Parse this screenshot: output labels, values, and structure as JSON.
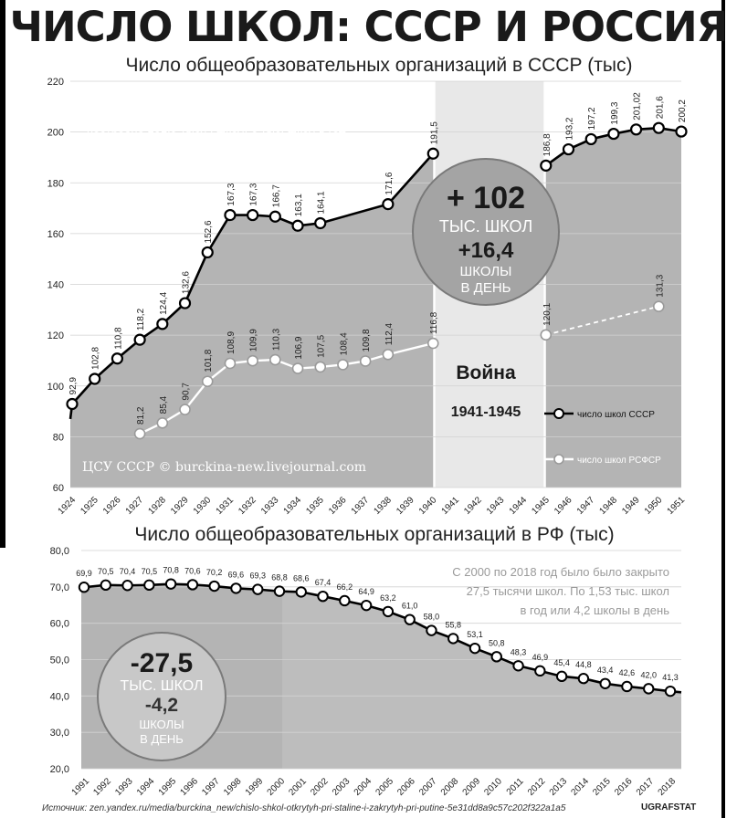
{
  "title": "ЧИСЛО ШКОЛ: СССР И РОССИЯ",
  "source": "Источник: zen.yandex.ru/media/burckina_new/chislo-shkol-otkrytyh-pri-staline-i-zakrytyh-pri-putine-5e31dd8a9c57c202f322a1a5",
  "brand": "UGRAFSTAT",
  "colors": {
    "area": "#b4b4b4",
    "war_band": "#e8e8e8",
    "line": "#000000",
    "accent_text": "#ffffff"
  },
  "chart_data": [
    {
      "type": "area",
      "title": "Число общеобразовательных организаций в СССР (тыс)",
      "ylim": [
        60,
        220
      ],
      "yticks": [
        "60",
        "80",
        "100",
        "120",
        "140",
        "160",
        "180",
        "200",
        "220"
      ],
      "categories": [
        "1924",
        "1925",
        "1926",
        "1927",
        "1928",
        "1929",
        "1930",
        "1931",
        "1932",
        "1933",
        "1934",
        "1935",
        "1936",
        "1937",
        "1938",
        "1939",
        "1940",
        "1941",
        "1942",
        "1943",
        "1944",
        "1945",
        "1946",
        "1947",
        "1948",
        "1949",
        "1950",
        "1951"
      ],
      "series": [
        {
          "name": "число школ СССР",
          "points": [
            {
              "x": "1924",
              "y": 92.9,
              "label": "92,9"
            },
            {
              "x": "1925",
              "y": 102.8,
              "label": "102,8"
            },
            {
              "x": "1926",
              "y": 110.8,
              "label": "110,8"
            },
            {
              "x": "1927",
              "y": 118.2,
              "label": "118,2"
            },
            {
              "x": "1928",
              "y": 124.4,
              "label": "124,4"
            },
            {
              "x": "1929",
              "y": 132.6,
              "label": "132,6"
            },
            {
              "x": "1930",
              "y": 152.6,
              "label": "152,6"
            },
            {
              "x": "1931",
              "y": 167.3,
              "label": "167,3"
            },
            {
              "x": "1932",
              "y": 167.3,
              "label": "167,3"
            },
            {
              "x": "1933",
              "y": 166.7,
              "label": "166,7"
            },
            {
              "x": "1934",
              "y": 163.1,
              "label": "163,1"
            },
            {
              "x": "1935",
              "y": 164.1,
              "label": "164,1"
            },
            {
              "x": "1938",
              "y": 171.6,
              "label": "171,6"
            },
            {
              "x": "1940",
              "y": 191.5,
              "label": "191,5"
            },
            {
              "x": "1945",
              "y": 186.8,
              "label": "186,8"
            },
            {
              "x": "1946",
              "y": 193.2,
              "label": "193,2"
            },
            {
              "x": "1947",
              "y": 197.2,
              "label": "197,2"
            },
            {
              "x": "1948",
              "y": 199.3,
              "label": "199,3"
            },
            {
              "x": "1949",
              "y": 201.02,
              "label": "201,02"
            },
            {
              "x": "1950",
              "y": 201.6,
              "label": "201,6"
            },
            {
              "x": "1951",
              "y": 200.2,
              "label": "200,2"
            }
          ]
        },
        {
          "name": "число школ РСФСР",
          "points": [
            {
              "x": "1927",
              "y": 81.2,
              "label": "81,2"
            },
            {
              "x": "1928",
              "y": 85.4,
              "label": "85,4"
            },
            {
              "x": "1929",
              "y": 90.7,
              "label": "90,7"
            },
            {
              "x": "1930",
              "y": 101.8,
              "label": "101,8"
            },
            {
              "x": "1931",
              "y": 108.9,
              "label": "108,9"
            },
            {
              "x": "1932",
              "y": 109.9,
              "label": "109,9"
            },
            {
              "x": "1933",
              "y": 110.3,
              "label": "110,3"
            },
            {
              "x": "1934",
              "y": 106.9,
              "label": "106,9"
            },
            {
              "x": "1935",
              "y": 107.5,
              "label": "107,5"
            },
            {
              "x": "1936",
              "y": 108.4,
              "label": "108,4"
            },
            {
              "x": "1937",
              "y": 109.8,
              "label": "109,8"
            },
            {
              "x": "1938",
              "y": 112.4,
              "label": "112,4"
            },
            {
              "x": "1940",
              "y": 116.8,
              "label": "116,8"
            },
            {
              "x": "1945",
              "y": 120.1,
              "label": "120,1"
            },
            {
              "x": "1950",
              "y": 131.3,
              "label": "131,3"
            }
          ]
        }
      ],
      "annotation": [
        "До войны в СССР с 1923 по 1940 год было",
        "построено 101,9 тысяч школ. 6 тыс. школ в год",
        "или 16,4 школы в день"
      ],
      "watermark": "ЦСУ СССР © burckina-new.livejournal.com",
      "war_label": "Война",
      "war_years": "1941-1945",
      "badge": {
        "big": "+ 102",
        "line1": "ТЫС. ШКОЛ",
        "mid": "+16,4",
        "line2": "ШКОЛЫ",
        "line3": "В ДЕНЬ"
      },
      "legend": [
        "число школ СССР",
        "число школ РСФСР"
      ]
    },
    {
      "type": "area",
      "title": "Число общеобразовательных организаций в РФ (тыс)",
      "ylim": [
        20,
        80
      ],
      "yticks": [
        "20,0",
        "30,0",
        "40,0",
        "50,0",
        "60,0",
        "70,0",
        "80,0"
      ],
      "categories": [
        "1991",
        "1992",
        "1993",
        "1994",
        "1995",
        "1996",
        "1997",
        "1998",
        "1999",
        "2000",
        "2001",
        "2002",
        "2003",
        "2004",
        "2005",
        "2006",
        "2007",
        "2008",
        "2009",
        "2010",
        "2011",
        "2012",
        "2013",
        "2014",
        "2015",
        "2016",
        "2017",
        "2018"
      ],
      "series": [
        {
          "name": "",
          "values": [
            69.9,
            70.5,
            70.4,
            70.5,
            70.8,
            70.6,
            70.2,
            69.6,
            69.3,
            68.8,
            68.6,
            67.4,
            66.2,
            64.9,
            63.2,
            61.0,
            58.0,
            55.8,
            53.1,
            50.8,
            48.3,
            46.9,
            45.4,
            44.8,
            43.4,
            42.6,
            42.0,
            41.3
          ],
          "labels": [
            "69,9",
            "70,5",
            "70,4",
            "70,5",
            "70,8",
            "70,6",
            "70,2",
            "69,6",
            "69,3",
            "68,8",
            "68,6",
            "67,4",
            "66,2",
            "64,9",
            "63,2",
            "61,0",
            "58,0",
            "55,8",
            "53,1",
            "50,8",
            "48,3",
            "46,9",
            "45,4",
            "44,8",
            "43,4",
            "42,6",
            "42,0",
            "41,3"
          ]
        }
      ],
      "annotation": [
        "С 2000 по 2018 год было было закрыто",
        "27,5 тысячи школ. По 1,53 тыс. школ",
        "в год или 4,2 школы в день"
      ],
      "badge": {
        "big": "-27,5",
        "line1": "ТЫС. ШКОЛ",
        "mid": "-4,2",
        "line2": "ШКОЛЫ",
        "line3": "В ДЕНЬ"
      }
    }
  ]
}
